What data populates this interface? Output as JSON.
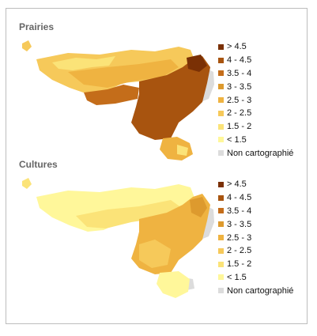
{
  "maps": [
    {
      "title": "Prairies",
      "legend": [
        {
          "label": "> 4.5",
          "color": "#7a3005"
        },
        {
          "label": "4 - 4.5",
          "color": "#a8540f"
        },
        {
          "label": "3.5 - 4",
          "color": "#c46d1a"
        },
        {
          "label": "3 - 3.5",
          "color": "#dd9a2e"
        },
        {
          "label": "2.5 - 3",
          "color": "#efb341"
        },
        {
          "label": "2 - 2.5",
          "color": "#f6c95a"
        },
        {
          "label": "1.5 - 2",
          "color": "#fbe378"
        },
        {
          "label": "< 1.5",
          "color": "#fff79a"
        },
        {
          "label": "Non cartographié",
          "color": "#dcdcdc"
        }
      ]
    },
    {
      "title": "Cultures",
      "legend": [
        {
          "label": "> 4.5",
          "color": "#7a3005"
        },
        {
          "label": "4 - 4.5",
          "color": "#a8540f"
        },
        {
          "label": "3.5 - 4",
          "color": "#c46d1a"
        },
        {
          "label": "3 - 3.5",
          "color": "#dd9a2e"
        },
        {
          "label": "2.5 - 3",
          "color": "#efb341"
        },
        {
          "label": "2 - 2.5",
          "color": "#f6c95a"
        },
        {
          "label": "1.5 - 2",
          "color": "#fbe378"
        },
        {
          "label": "< 1.5",
          "color": "#fff79a"
        },
        {
          "label": "Non cartographié",
          "color": "#dcdcdc"
        }
      ]
    }
  ]
}
